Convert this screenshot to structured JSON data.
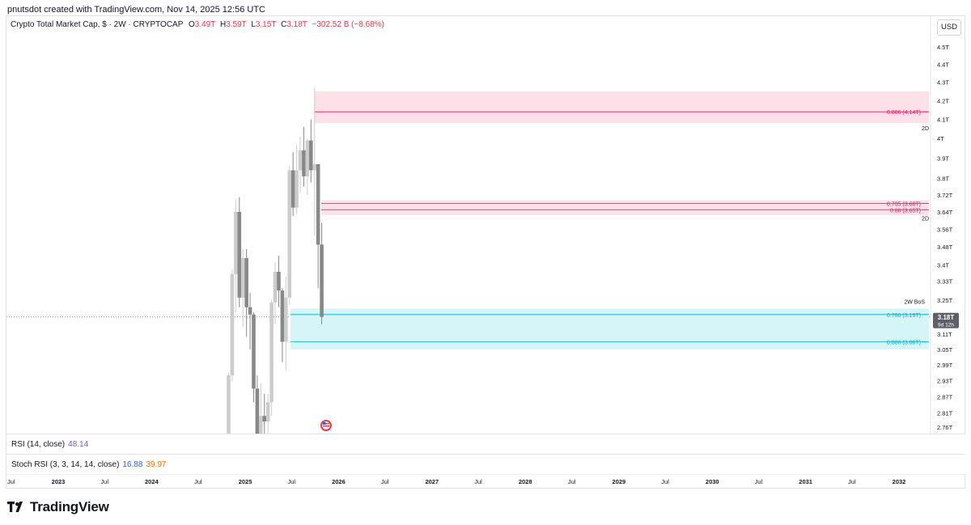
{
  "header": {
    "credit": "pnutsdot created with TradingView.com, Nov 14, 2025 12:56 UTC"
  },
  "legend": {
    "title": "Crypto Total Market Cap, $ · 2W · CRYPTOCAP",
    "o_label": "O",
    "o_value": "3.49T",
    "h_label": "H",
    "h_value": "3.59T",
    "l_label": "L",
    "l_value": "3.15T",
    "c_label": "C",
    "c_value": "3.18T",
    "change": "−302.52 B (−8.68%)"
  },
  "toolbar": {
    "currency": "USD"
  },
  "indicators": {
    "rsi_label": "RSI (14, close)",
    "rsi_value": "48.14",
    "stoch_label": "Stoch RSI (3, 3, 14, 14, close)",
    "stoch_k": "16.88",
    "stoch_d": "39.97"
  },
  "price_tag": {
    "value": "3.18T",
    "countdown": "9d 12h"
  },
  "annotations": {
    "upper_zone_tf": "2D",
    "mid_zone_tf": "2D",
    "bos_label": "2W BoS"
  },
  "colors": {
    "bearish_zone_fill": "#fde0e8",
    "bearish_line": "#d81b60",
    "bullish_zone_fill": "#d6f5f9",
    "bullish_line": "#00acc1",
    "candle_up": "#cccccc",
    "candle_down": "#888888",
    "axis_text": "#131722",
    "price_tag_bg": "#5d606b"
  },
  "branding": {
    "logo_text": "TradingView",
    "icon": "tradingview-logo-icon"
  },
  "chart_data": {
    "type": "candlestick",
    "title": "Crypto Total Market Cap, $ · 2W · CRYPTOCAP",
    "interval": "2W",
    "scale": "log",
    "ylim": [
      2.74,
      4.6
    ],
    "y_ticks": [
      "4.5T",
      "4.4T",
      "4.3T",
      "4.2T",
      "4.1T",
      "4T",
      "3.9T",
      "3.8T",
      "3.72T",
      "3.64T",
      "3.56T",
      "3.48T",
      "3.4T",
      "3.33T",
      "3.25T",
      "3.11T",
      "3.05T",
      "2.99T",
      "2.93T",
      "2.87T",
      "2.81T",
      "2.76T"
    ],
    "y_tick_values": [
      4.5,
      4.4,
      4.3,
      4.2,
      4.1,
      4.0,
      3.9,
      3.8,
      3.72,
      3.64,
      3.56,
      3.48,
      3.4,
      3.33,
      3.25,
      3.11,
      3.05,
      2.99,
      2.93,
      2.87,
      2.81,
      2.76
    ],
    "x_ticks": [
      "Jul",
      "2023",
      "Jul",
      "2024",
      "Jul",
      "2025",
      "Jul",
      "2026",
      "Jul",
      "2027",
      "Jul",
      "2028",
      "Jul",
      "2029",
      "Jul",
      "2030",
      "Jul",
      "2031",
      "Jul",
      "2032"
    ],
    "x_ticks_bold": [
      false,
      true,
      false,
      true,
      false,
      true,
      false,
      true,
      false,
      true,
      false,
      true,
      false,
      true,
      false,
      true,
      false,
      true,
      false,
      true
    ],
    "x_tick_dates": [
      "2022-07-01",
      "2023-01-01",
      "2023-07-01",
      "2024-01-01",
      "2024-07-01",
      "2025-01-01",
      "2025-07-01",
      "2026-01-01",
      "2026-07-01",
      "2027-01-01",
      "2027-07-01",
      "2028-01-01",
      "2028-07-01",
      "2029-01-01",
      "2029-07-01",
      "2030-01-01",
      "2030-07-01",
      "2031-01-01",
      "2031-07-01",
      "2032-01-01"
    ],
    "candles": [
      {
        "date": "2024-10-28",
        "open": 2.6,
        "high": 2.96,
        "low": 2.5,
        "close": 2.95
      },
      {
        "date": "2024-11-11",
        "open": 2.95,
        "high": 3.38,
        "low": 2.93,
        "close": 3.36
      },
      {
        "date": "2024-11-25",
        "open": 3.36,
        "high": 3.7,
        "low": 3.2,
        "close": 3.64
      },
      {
        "date": "2024-12-09",
        "open": 3.64,
        "high": 3.71,
        "low": 3.22,
        "close": 3.26
      },
      {
        "date": "2024-12-23",
        "open": 3.26,
        "high": 3.47,
        "low": 3.14,
        "close": 3.43
      },
      {
        "date": "2025-01-06",
        "open": 3.43,
        "high": 3.47,
        "low": 3.1,
        "close": 3.22
      },
      {
        "date": "2025-01-20",
        "open": 3.22,
        "high": 3.28,
        "low": 3.05,
        "close": 3.19
      },
      {
        "date": "2025-02-03",
        "open": 3.19,
        "high": 3.2,
        "low": 2.85,
        "close": 2.9
      },
      {
        "date": "2025-02-17",
        "open": 2.9,
        "high": 2.95,
        "low": 2.6,
        "close": 2.7
      },
      {
        "date": "2025-03-03",
        "open": 2.7,
        "high": 2.92,
        "low": 2.58,
        "close": 2.8
      },
      {
        "date": "2025-03-17",
        "open": 2.8,
        "high": 2.88,
        "low": 2.6,
        "close": 2.78
      },
      {
        "date": "2025-03-31",
        "open": 2.78,
        "high": 2.88,
        "low": 2.55,
        "close": 2.85
      },
      {
        "date": "2025-04-14",
        "open": 2.85,
        "high": 3.25,
        "low": 2.8,
        "close": 3.24
      },
      {
        "date": "2025-04-28",
        "open": 3.24,
        "high": 3.41,
        "low": 3.15,
        "close": 3.37
      },
      {
        "date": "2025-05-12",
        "open": 3.37,
        "high": 3.44,
        "low": 3.22,
        "close": 3.29
      },
      {
        "date": "2025-05-26",
        "open": 3.29,
        "high": 3.3,
        "low": 3.0,
        "close": 3.08
      },
      {
        "date": "2025-06-09",
        "open": 3.08,
        "high": 3.35,
        "low": 2.97,
        "close": 3.26
      },
      {
        "date": "2025-06-23",
        "open": 3.26,
        "high": 3.86,
        "low": 3.23,
        "close": 3.84
      },
      {
        "date": "2025-07-07",
        "open": 3.84,
        "high": 3.93,
        "low": 3.62,
        "close": 3.66
      },
      {
        "date": "2025-07-21",
        "open": 3.66,
        "high": 3.97,
        "low": 3.63,
        "close": 3.84
      },
      {
        "date": "2025-08-04",
        "open": 3.84,
        "high": 4.01,
        "low": 3.73,
        "close": 3.94
      },
      {
        "date": "2025-08-18",
        "open": 3.94,
        "high": 4.06,
        "low": 3.76,
        "close": 3.81
      },
      {
        "date": "2025-09-01",
        "open": 3.81,
        "high": 4.0,
        "low": 3.72,
        "close": 3.99
      },
      {
        "date": "2025-09-15",
        "open": 3.99,
        "high": 4.1,
        "low": 3.78,
        "close": 3.84
      },
      {
        "date": "2025-09-29",
        "open": 3.84,
        "high": 4.27,
        "low": 3.53,
        "close": 3.87
      },
      {
        "date": "2025-10-13",
        "open": 3.87,
        "high": 3.87,
        "low": 3.3,
        "close": 3.49
      },
      {
        "date": "2025-10-27",
        "open": 3.49,
        "high": 3.59,
        "low": 3.15,
        "close": 3.18
      }
    ],
    "last_price": 3.18,
    "zones": [
      {
        "kind": "supply",
        "top": 4.25,
        "bottom": 4.08,
        "lines": [
          {
            "label": "0.886 (4.14T)",
            "value": 4.14
          }
        ]
      },
      {
        "kind": "supply",
        "top": 3.695,
        "bottom": 3.625,
        "lines": [
          {
            "label": "0.705 (3.68T)",
            "value": 3.68
          },
          {
            "label": "0.66 (3.65T)",
            "value": 3.65
          }
        ]
      },
      {
        "kind": "demand",
        "top": 3.215,
        "bottom": 3.05,
        "lines": [
          {
            "label": "0.786 (3.19T)",
            "value": 3.19
          },
          {
            "label": "0.886 (3.08T)",
            "value": 3.08
          }
        ]
      }
    ]
  }
}
